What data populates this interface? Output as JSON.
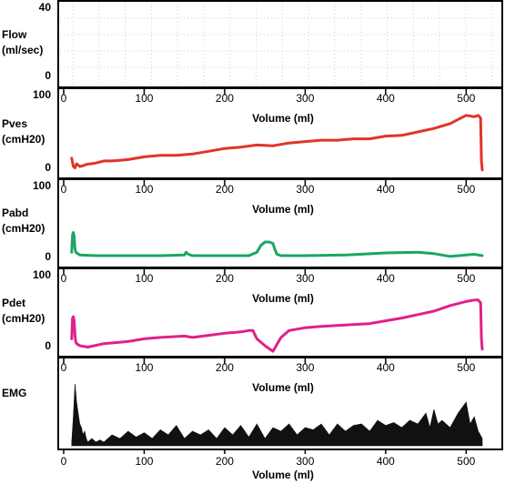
{
  "chart_data": [
    {
      "type": "line",
      "ylabel": [
        "Flow",
        "(ml/sec)"
      ],
      "ylim": [
        0,
        40
      ],
      "yticks": [
        "40",
        "0"
      ],
      "grid": "dotted",
      "xlabel": "",
      "color": "#000000",
      "x": [],
      "y": []
    },
    {
      "type": "line",
      "ylabel": [
        "Pves",
        "(cmH20)"
      ],
      "ylim": [
        0,
        100
      ],
      "yticks": [
        "100",
        "0"
      ],
      "xlabel": "Volume (ml)",
      "xlim": [
        0,
        520
      ],
      "xticks": [
        "0",
        "100",
        "200",
        "300",
        "400",
        "500"
      ],
      "color": "#e0342a",
      "x": [
        10,
        12,
        14,
        16,
        18,
        20,
        24,
        28,
        34,
        40,
        50,
        60,
        80,
        100,
        120,
        140,
        160,
        180,
        200,
        220,
        240,
        260,
        280,
        300,
        320,
        340,
        360,
        380,
        400,
        420,
        440,
        460,
        480,
        490,
        500,
        510,
        515,
        518,
        519,
        520
      ],
      "y": [
        12,
        0,
        -2,
        4,
        2,
        0,
        1,
        3,
        4,
        5,
        8,
        8,
        10,
        14,
        16,
        16,
        18,
        22,
        26,
        28,
        31,
        30,
        34,
        36,
        38,
        38,
        40,
        40,
        44,
        45,
        50,
        55,
        62,
        68,
        74,
        72,
        74,
        70,
        8,
        -5
      ]
    },
    {
      "type": "line",
      "ylabel": [
        "Pabd",
        "(cmH20)"
      ],
      "ylim": [
        0,
        100
      ],
      "yticks": [
        "100",
        "0"
      ],
      "xlabel": "Volume (ml)",
      "xlim": [
        0,
        520
      ],
      "xticks": [
        "0",
        "100",
        "200",
        "300",
        "400",
        "500"
      ],
      "color": "#1aa664",
      "x": [
        10,
        11,
        12,
        13,
        14,
        15,
        20,
        40,
        80,
        120,
        150,
        152,
        155,
        160,
        200,
        230,
        240,
        245,
        250,
        255,
        260,
        262,
        265,
        270,
        300,
        350,
        400,
        440,
        460,
        480,
        500,
        510,
        520
      ],
      "y": [
        5,
        30,
        34,
        28,
        10,
        5,
        1,
        0,
        0,
        0,
        1,
        5,
        2,
        0,
        0,
        0,
        5,
        15,
        20,
        20,
        18,
        10,
        2,
        0,
        0,
        1,
        4,
        5,
        3,
        -1,
        1,
        2,
        0
      ]
    },
    {
      "type": "line",
      "ylabel": [
        "Pdet",
        "(cmH20)"
      ],
      "ylim": [
        0,
        100
      ],
      "yticks": [
        "100",
        "0"
      ],
      "xlabel": "Volume (ml)",
      "xlim": [
        0,
        520
      ],
      "xticks": [
        "0",
        "100",
        "200",
        "300",
        "400",
        "500"
      ],
      "color": "#e0208a",
      "x": [
        10,
        11,
        12,
        13,
        14,
        15,
        16,
        20,
        30,
        50,
        80,
        100,
        120,
        150,
        160,
        180,
        200,
        220,
        230,
        235,
        240,
        250,
        260,
        265,
        270,
        280,
        300,
        320,
        350,
        380,
        400,
        420,
        440,
        460,
        480,
        500,
        510,
        515,
        518,
        519,
        520
      ],
      "y": [
        10,
        40,
        42,
        36,
        15,
        5,
        3,
        0,
        -2,
        3,
        6,
        10,
        12,
        14,
        12,
        15,
        18,
        20,
        22,
        22,
        10,
        0,
        -8,
        2,
        12,
        22,
        26,
        28,
        30,
        32,
        36,
        40,
        45,
        50,
        58,
        64,
        66,
        66,
        62,
        10,
        -5
      ]
    },
    {
      "type": "area",
      "ylabel": [
        "EMG"
      ],
      "xlabel": "Volume (ml)",
      "xlim": [
        0,
        520
      ],
      "xticks": [
        "0",
        "100",
        "200",
        "300",
        "400",
        "500"
      ],
      "color": "#111111",
      "x": [
        10,
        12,
        14,
        16,
        18,
        20,
        22,
        24,
        26,
        28,
        30,
        35,
        40,
        45,
        50,
        60,
        70,
        80,
        90,
        100,
        110,
        120,
        130,
        140,
        150,
        160,
        170,
        180,
        190,
        200,
        210,
        220,
        230,
        240,
        250,
        260,
        270,
        280,
        290,
        300,
        310,
        320,
        330,
        340,
        350,
        360,
        370,
        380,
        390,
        400,
        410,
        420,
        430,
        440,
        450,
        455,
        460,
        465,
        470,
        480,
        490,
        500,
        505,
        510,
        515,
        520
      ],
      "y": [
        0.05,
        0.4,
        0.85,
        0.6,
        0.45,
        0.3,
        0.25,
        0.15,
        0.2,
        0.1,
        0.05,
        0.1,
        0.05,
        0.08,
        0.05,
        0.15,
        0.1,
        0.2,
        0.12,
        0.18,
        0.1,
        0.22,
        0.15,
        0.28,
        0.1,
        0.2,
        0.15,
        0.22,
        0.1,
        0.25,
        0.15,
        0.28,
        0.12,
        0.3,
        0.1,
        0.25,
        0.2,
        0.3,
        0.15,
        0.25,
        0.22,
        0.3,
        0.15,
        0.3,
        0.2,
        0.28,
        0.3,
        0.2,
        0.35,
        0.28,
        0.32,
        0.25,
        0.35,
        0.3,
        0.45,
        0.25,
        0.5,
        0.3,
        0.35,
        0.25,
        0.45,
        0.6,
        0.3,
        0.4,
        0.2,
        0.1
      ]
    }
  ]
}
